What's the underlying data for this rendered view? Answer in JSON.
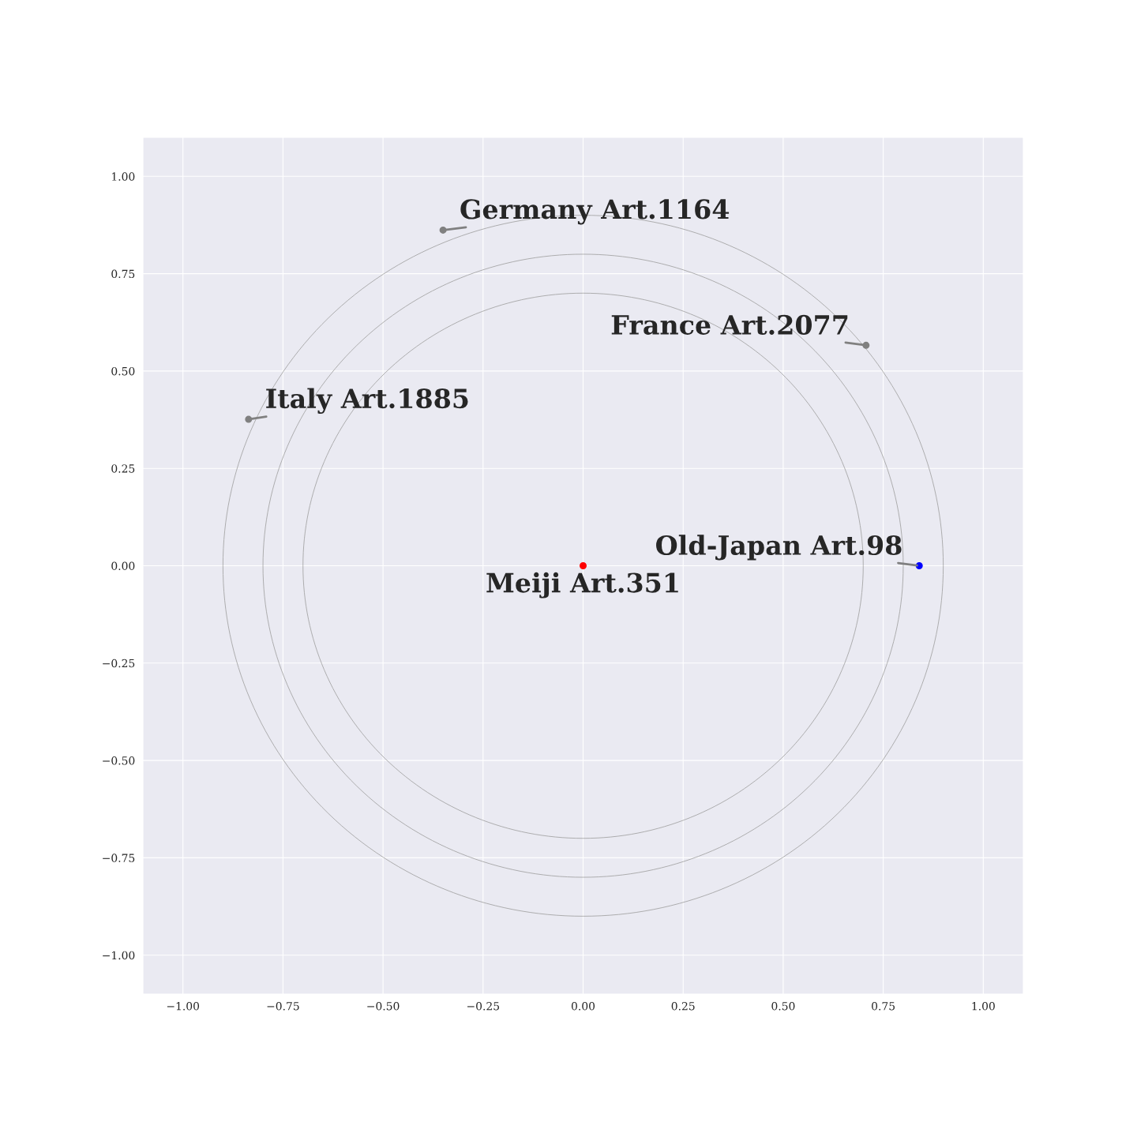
{
  "chart_data": {
    "type": "scatter",
    "xlim": [
      -1.1,
      1.1
    ],
    "ylim": [
      -1.1,
      1.1
    ],
    "xticks": [
      {
        "value": -1.0,
        "label": "−1.00"
      },
      {
        "value": -0.75,
        "label": "−0.75"
      },
      {
        "value": -0.5,
        "label": "−0.50"
      },
      {
        "value": -0.25,
        "label": "−0.25"
      },
      {
        "value": 0,
        "label": "0.00"
      },
      {
        "value": 0.25,
        "label": "0.25"
      },
      {
        "value": 0.5,
        "label": "0.50"
      },
      {
        "value": 0.75,
        "label": "0.75"
      },
      {
        "value": 1.0,
        "label": "1.00"
      }
    ],
    "yticks": [
      {
        "value": -1.0,
        "label": "−1.00"
      },
      {
        "value": -0.75,
        "label": "−0.75"
      },
      {
        "value": -0.5,
        "label": "−0.50"
      },
      {
        "value": -0.25,
        "label": "−0.25"
      },
      {
        "value": 0,
        "label": "0.00"
      },
      {
        "value": 0.25,
        "label": "0.25"
      },
      {
        "value": 0.5,
        "label": "0.50"
      },
      {
        "value": 0.75,
        "label": "0.75"
      },
      {
        "value": 1.0,
        "label": "1.00"
      }
    ],
    "grid": true,
    "legend": false,
    "series": [
      {
        "marker": "circle",
        "x": [
          0,
          0.84,
          -0.35,
          0.707,
          -0.836
        ],
        "values": [
          0,
          0,
          0.862,
          0.566,
          0.376
        ],
        "colors": [
          "#ff0000",
          "#0000ff",
          "#808080",
          "#808080",
          "#808080"
        ]
      }
    ],
    "annotations": [
      {
        "text": "Meiji Art.351",
        "x": 0,
        "y": 0
      },
      {
        "text": "Old-Japan Art.98",
        "x": 0.84,
        "y": 0
      },
      {
        "text": "Germany Art.1164",
        "x": -0.35,
        "y": 0.862
      },
      {
        "text": "France Art.2077",
        "x": 0.707,
        "y": 0.566
      },
      {
        "text": "Italy Art.1885",
        "x": -0.836,
        "y": 0.376
      }
    ]
  }
}
